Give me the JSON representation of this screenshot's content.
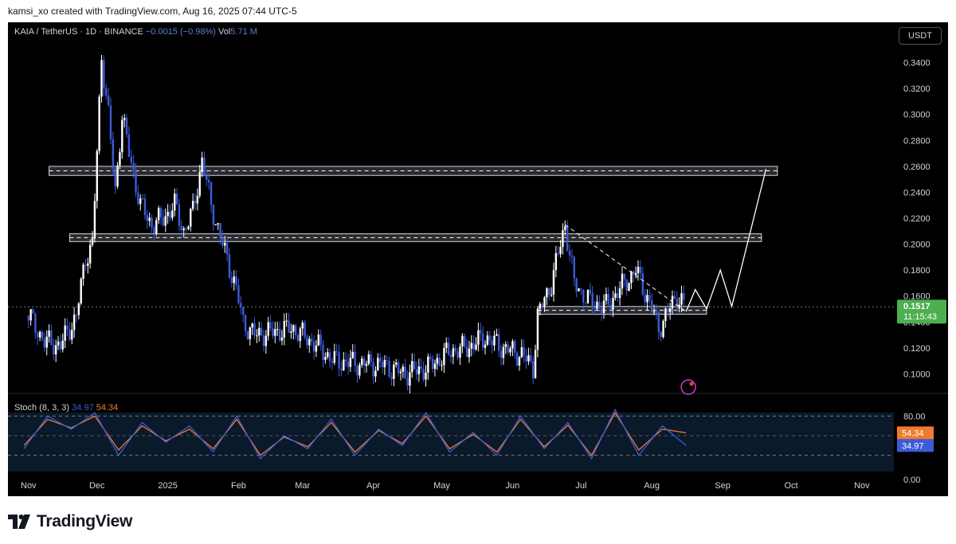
{
  "header": {
    "caption": "kamsi_xo created with TradingView.com, Aug 16, 2025 07:44 UTC-5"
  },
  "legend": {
    "symbol": "KAIA / TetherUS · 1D · BINANCE",
    "change": "−0.0015 (−0.98%)",
    "vol_label": "Vol",
    "vol_value": "5.71 M"
  },
  "currency_button": "USDT",
  "price_label": {
    "price": "0.1517",
    "countdown": "11:15:43"
  },
  "stoch": {
    "label": "Stoch (8, 3, 3)",
    "k_value": "34.97",
    "d_value": "54.34"
  },
  "footer": {
    "brand": "TradingView"
  },
  "colors": {
    "background": "#000000",
    "candle": "#ffffff",
    "candle_alt": "#3d5bd9",
    "k_line": "#3d5bd9",
    "d_line": "#f07a2e",
    "price_badge": "#4caf50"
  },
  "chart_data": {
    "type": "candlestick",
    "xlabels": [
      "Nov",
      "Dec",
      "2025",
      "Feb",
      "Mar",
      "Apr",
      "May",
      "Jun",
      "Jul",
      "Aug",
      "Sep",
      "Oct",
      "Nov"
    ],
    "ylim": [
      0.08,
      0.36
    ],
    "ytick_labels": [
      "0.3400",
      "0.3200",
      "0.3000",
      "0.2800",
      "0.2600",
      "0.2400",
      "0.2200",
      "0.2000",
      "0.1800",
      "0.1600",
      "0.1400",
      "0.1200",
      "0.1000"
    ],
    "close_series": [
      [
        "2024-11-01",
        0.145
      ],
      [
        "2024-11-08",
        0.125
      ],
      [
        "2024-11-15",
        0.122
      ],
      [
        "2024-11-22",
        0.145
      ],
      [
        "2024-11-26",
        0.19
      ],
      [
        "2024-11-29",
        0.2
      ],
      [
        "2024-12-01",
        0.27
      ],
      [
        "2024-12-03",
        0.345
      ],
      [
        "2024-12-06",
        0.3
      ],
      [
        "2024-12-09",
        0.24
      ],
      [
        "2024-12-12",
        0.3
      ],
      [
        "2024-12-15",
        0.27
      ],
      [
        "2024-12-20",
        0.23
      ],
      [
        "2024-12-25",
        0.215
      ],
      [
        "2024-12-30",
        0.22
      ],
      [
        "2025-01-04",
        0.23
      ],
      [
        "2025-01-08",
        0.21
      ],
      [
        "2025-01-12",
        0.225
      ],
      [
        "2025-01-16",
        0.265
      ],
      [
        "2025-01-20",
        0.23
      ],
      [
        "2025-01-25",
        0.2
      ],
      [
        "2025-01-31",
        0.165
      ],
      [
        "2025-02-03",
        0.14
      ],
      [
        "2025-02-08",
        0.13
      ],
      [
        "2025-02-15",
        0.132
      ],
      [
        "2025-02-25",
        0.135
      ],
      [
        "2025-03-05",
        0.125
      ],
      [
        "2025-03-15",
        0.11
      ],
      [
        "2025-03-25",
        0.108
      ],
      [
        "2025-04-05",
        0.107
      ],
      [
        "2025-04-15",
        0.1
      ],
      [
        "2025-04-25",
        0.105
      ],
      [
        "2025-05-05",
        0.118
      ],
      [
        "2025-05-12",
        0.12
      ],
      [
        "2025-05-20",
        0.128
      ],
      [
        "2025-05-28",
        0.12
      ],
      [
        "2025-06-05",
        0.115
      ],
      [
        "2025-06-10",
        0.105
      ],
      [
        "2025-06-12",
        0.145
      ],
      [
        "2025-06-18",
        0.17
      ],
      [
        "2025-06-24",
        0.215
      ],
      [
        "2025-06-28",
        0.17
      ],
      [
        "2025-07-05",
        0.155
      ],
      [
        "2025-07-12",
        0.152
      ],
      [
        "2025-07-20",
        0.17
      ],
      [
        "2025-07-25",
        0.18
      ],
      [
        "2025-08-01",
        0.15
      ],
      [
        "2025-08-04",
        0.135
      ],
      [
        "2025-08-08",
        0.148
      ],
      [
        "2025-08-12",
        0.16
      ],
      [
        "2025-08-16",
        0.1517
      ]
    ],
    "zones": [
      [
        0.253,
        0.26
      ],
      [
        0.202,
        0.208
      ],
      [
        0.146,
        0.152
      ]
    ],
    "trendline": [
      [
        "2025-06-24",
        0.215
      ],
      [
        "2025-08-16",
        0.148
      ]
    ],
    "projection": [
      [
        "2025-08-16",
        0.148
      ],
      [
        "2025-08-20",
        0.165
      ],
      [
        "2025-08-25",
        0.15
      ],
      [
        "2025-08-31",
        0.18
      ],
      [
        "2025-09-05",
        0.152
      ],
      [
        "2025-09-20",
        0.258
      ]
    ],
    "stoch_k": [
      30,
      80,
      60,
      85,
      20,
      70,
      40,
      65,
      25,
      80,
      15,
      50,
      30,
      75,
      20,
      60,
      35,
      85,
      25,
      55,
      20,
      80,
      30,
      70,
      15,
      90,
      20,
      65,
      34.97
    ],
    "stoch_d": [
      35,
      75,
      62,
      80,
      28,
      65,
      42,
      60,
      30,
      75,
      20,
      48,
      33,
      70,
      25,
      58,
      38,
      80,
      30,
      52,
      25,
      75,
      33,
      66,
      20,
      85,
      28,
      60,
      54.34
    ],
    "stoch_levels": [
      "80.00",
      "0.00"
    ]
  }
}
